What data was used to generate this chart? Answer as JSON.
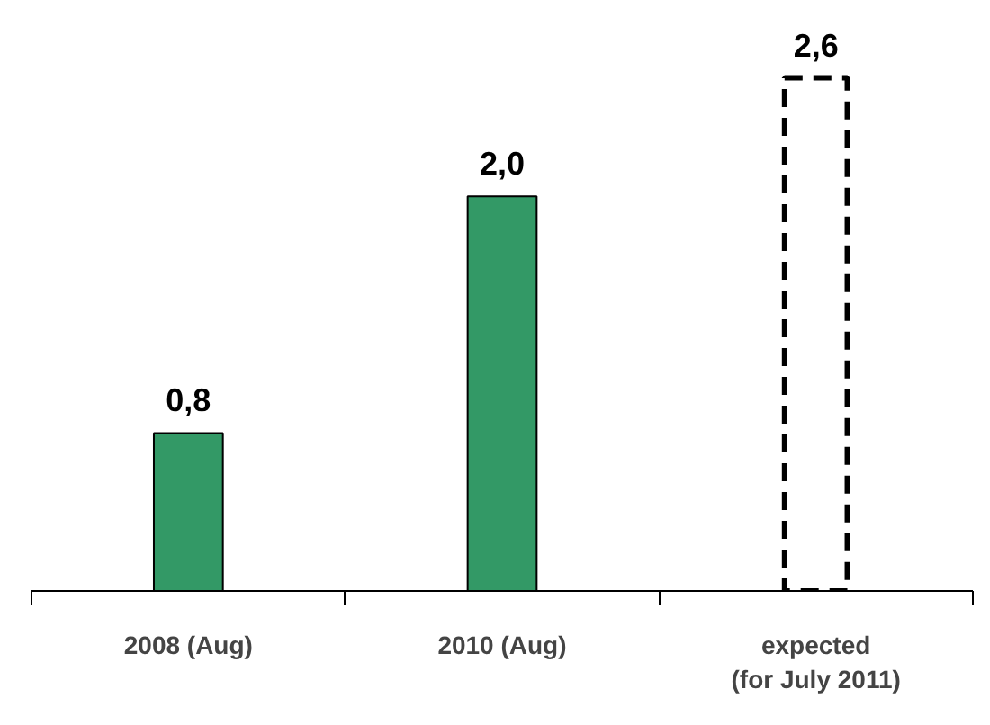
{
  "chart_data": {
    "type": "bar",
    "categories": [
      "2008 (Aug)",
      "2010 (Aug)",
      "expected\n(for July 2011)"
    ],
    "series": [
      {
        "color": "#339966",
        "values": [
          0.8,
          2.0,
          null
        ],
        "value_labels": [
          "0,8",
          "2,0",
          null
        ]
      },
      {
        "color": "#000000",
        "values": [
          null,
          null,
          2.6
        ],
        "value_labels": [
          null,
          null,
          "2,6"
        ],
        "line_style": "dashed"
      }
    ],
    "grid": false
  }
}
